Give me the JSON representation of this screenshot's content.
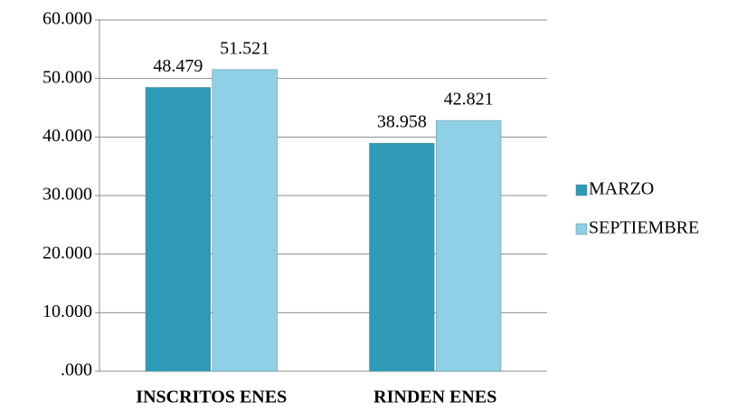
{
  "chart_data": {
    "type": "bar",
    "categories": [
      "INSCRITOS ENES",
      "RINDEN ENES"
    ],
    "series": [
      {
        "name": "MARZO",
        "color": "#2e9ab5",
        "values": [
          48479,
          38958
        ],
        "value_labels": [
          "48.479",
          "38.958"
        ]
      },
      {
        "name": "SEPTIEMBRE",
        "color": "#8fd0e6",
        "values": [
          51521,
          42821
        ],
        "value_labels": [
          "51.521",
          "42.821"
        ]
      }
    ],
    "ylim": [
      0,
      60000
    ],
    "yticks": [
      {
        "value": 0,
        "label": ".000"
      },
      {
        "value": 10000,
        "label": "10.000"
      },
      {
        "value": 20000,
        "label": "20.000"
      },
      {
        "value": 30000,
        "label": "30.000"
      },
      {
        "value": 40000,
        "label": "40.000"
      },
      {
        "value": 50000,
        "label": "50.000"
      },
      {
        "value": 60000,
        "label": "60.000"
      }
    ],
    "grid": true,
    "legend": "right"
  }
}
